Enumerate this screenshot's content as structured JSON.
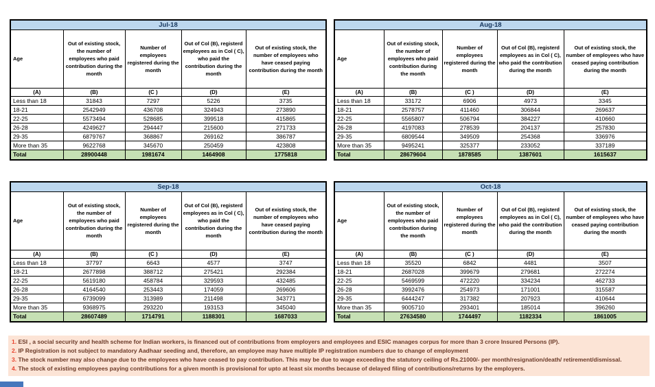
{
  "colors": {
    "title_band_bg": "#bdd7ee",
    "title_text": "#17375e",
    "total_row_bg": "#c6e0b4",
    "border": "#000000",
    "footnote_bg": "#fce4d6",
    "footnote_number": "#e8442e",
    "footnote_text": "#6b3a28",
    "corner_box": "#4677bc"
  },
  "shared": {
    "age_header": "Age",
    "col_letters": [
      "(A)",
      "(B)",
      "(C )",
      "(D)",
      "(E)"
    ],
    "col_headers": [
      "Out of existing stock, the number of employees who paid contribution during the month",
      "Number of employees registered during the month",
      "Out of Col (B), registerd employees as in Col ( C), who paid the contribution during the month",
      "Out of existing stock, the number of employees who have ceased paying contribution during the month"
    ]
  },
  "tables": [
    {
      "title": "Jul-18",
      "rows": [
        [
          "Less than 18",
          "31843",
          "7297",
          "5226",
          "3735"
        ],
        [
          "18-21",
          "2542949",
          "436708",
          "324943",
          "273890"
        ],
        [
          "22-25",
          "5573494",
          "528685",
          "399518",
          "415865"
        ],
        [
          "26-28",
          "4249627",
          "294447",
          "215600",
          "271733"
        ],
        [
          "29-35",
          "6879767",
          "368867",
          "269162",
          "386787"
        ],
        [
          "More than 35",
          "9622768",
          "345670",
          "250459",
          "423808"
        ]
      ],
      "total": [
        "Total",
        "28900448",
        "1981674",
        "1464908",
        "1775818"
      ]
    },
    {
      "title": "Aug-18",
      "rows": [
        [
          "Less than 18",
          "33172",
          "6906",
          "4973",
          "3345"
        ],
        [
          "18-21",
          "2578757",
          "411460",
          "306844",
          "269637"
        ],
        [
          "22-25",
          "5565807",
          "506794",
          "384227",
          "410660"
        ],
        [
          "26-28",
          "4197083",
          "278539",
          "204137",
          "257830"
        ],
        [
          "29-35",
          "6809544",
          "349509",
          "254368",
          "336976"
        ],
        [
          "More than 35",
          "9495241",
          "325377",
          "233052",
          "337189"
        ]
      ],
      "total": [
        "Total",
        "28679604",
        "1878585",
        "1387601",
        "1615637"
      ]
    },
    {
      "title": "Sep-18",
      "rows": [
        [
          "Less than 18",
          "37797",
          "6643",
          "4577",
          "3747"
        ],
        [
          "18-21",
          "2677898",
          "388712",
          "275421",
          "292384"
        ],
        [
          "22-25",
          "5619180",
          "458784",
          "329593",
          "432485"
        ],
        [
          "26-28",
          "4164540",
          "253443",
          "174059",
          "269606"
        ],
        [
          "29-35",
          "6739099",
          "313989",
          "211498",
          "343771"
        ],
        [
          "More than 35",
          "9368975",
          "293220",
          "193153",
          "345040"
        ]
      ],
      "total": [
        "Total",
        "28607489",
        "1714791",
        "1188301",
        "1687033"
      ]
    },
    {
      "title": "Oct-18",
      "rows": [
        [
          "Less than 18",
          "35520",
          "6842",
          "4481",
          "3507"
        ],
        [
          "18-21",
          "2687028",
          "399679",
          "279681",
          "272274"
        ],
        [
          "22-25",
          "5469599",
          "472220",
          "334234",
          "462733"
        ],
        [
          "26-28",
          "3992476",
          "254973",
          "171001",
          "315587"
        ],
        [
          "29-35",
          "6444247",
          "317382",
          "207923",
          "410644"
        ],
        [
          "More than 35",
          "9005710",
          "293401",
          "185014",
          "396260"
        ]
      ],
      "total": [
        "Total",
        "27634580",
        "1744497",
        "1182334",
        "1861005"
      ]
    }
  ],
  "footnotes": [
    {
      "num": "1.",
      "text": "ESI , a social security and health scheme for Indian workers, is financed out of contributions from employers and employees and ESIC manages corpus for more than 3 crore Insured Persons (IP)."
    },
    {
      "num": "2.",
      "text": "IP Registration is not subject to mandatory Aadhaar seeding and, therefore, an employee may have multiple IP registration numbers due to change of employment"
    },
    {
      "num": "3.",
      "text": "The stock number may also change due to the employees who have ceased to pay contribution. This may be due to wage exceeding the statutory ceiling of Rs.21000/- per month/resignation/death/ retirement/dismissal."
    },
    {
      "num": "4.",
      "text": "The stock of existing employees paying contributions for a given month is provisional for upto at least six months because of delayed filing of contributions/returns by the employers."
    }
  ]
}
